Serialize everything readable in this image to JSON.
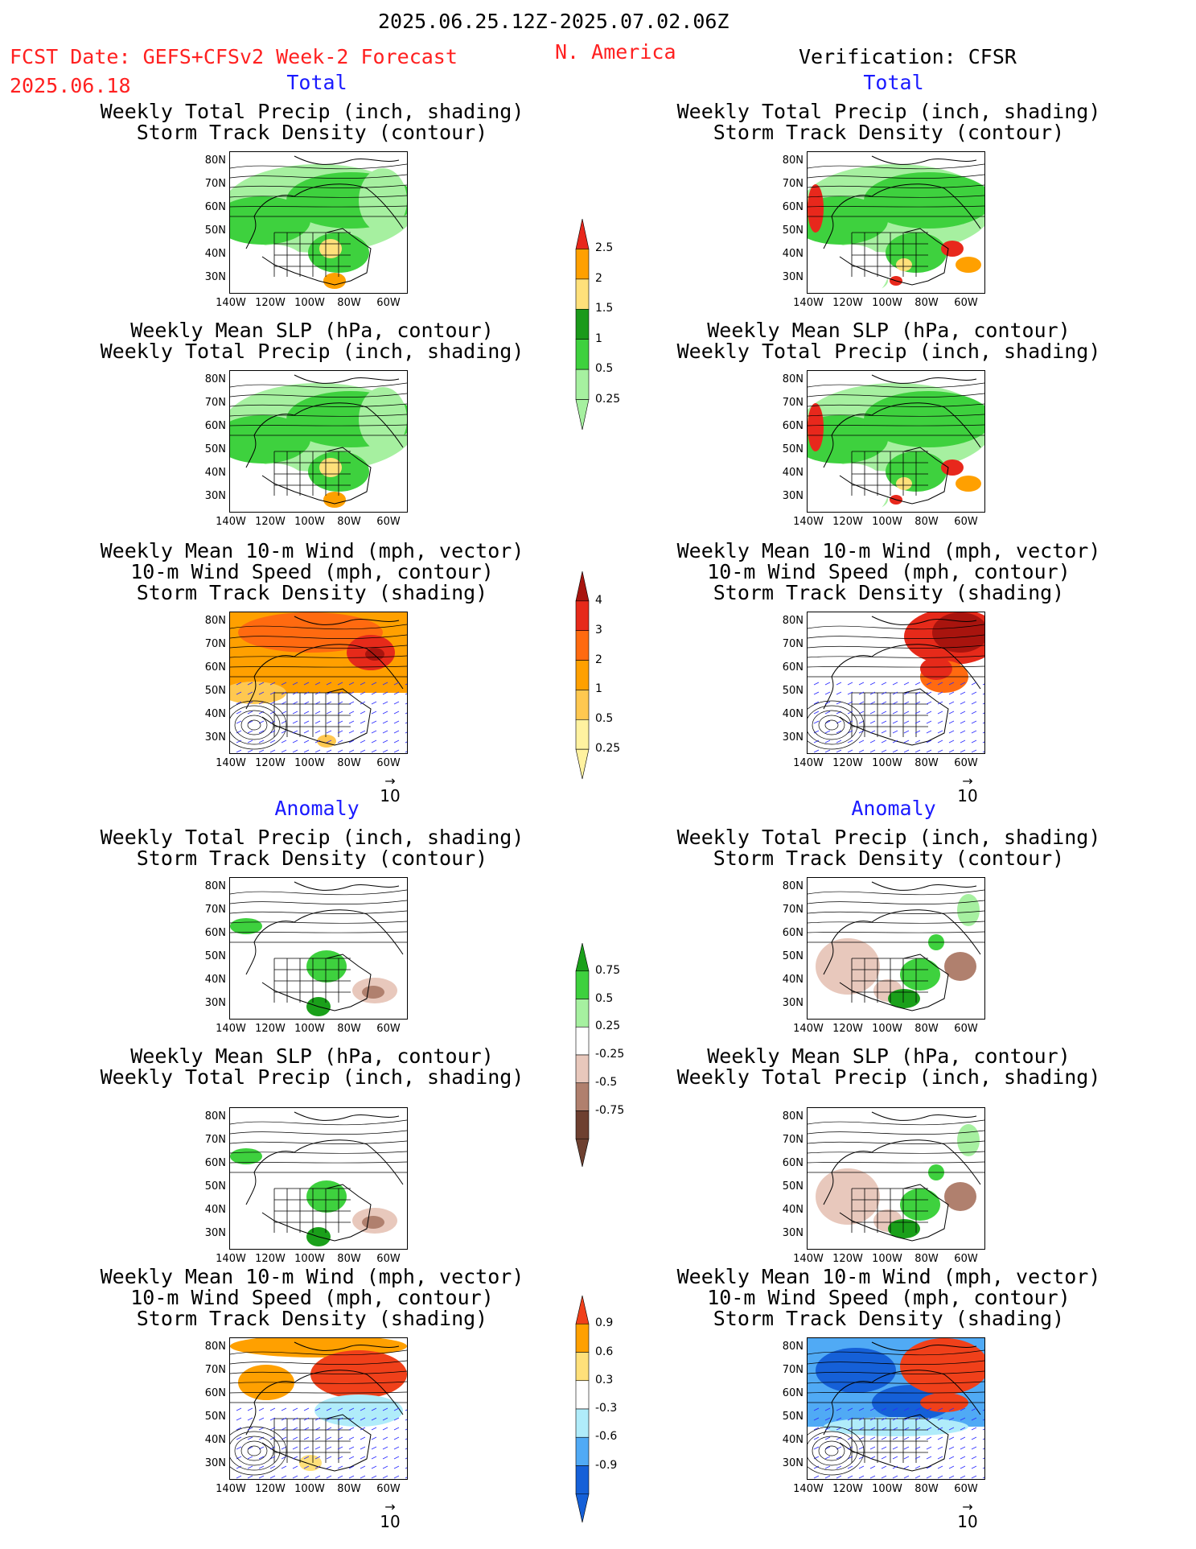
{
  "header": {
    "period": "2025.06.25.12Z-2025.07.02.06Z",
    "fcst_line1": "FCST Date: GEFS+CFSv2 Week-2 Forecast",
    "fcst_date": "2025.06.18",
    "region": "N. America",
    "verification": "Verification: CFSR"
  },
  "sections": {
    "total": "Total",
    "anomaly": "Anomaly"
  },
  "titles": {
    "precip_storm": [
      "Weekly Total Precip (inch, shading)",
      "Storm Track Density (contour)"
    ],
    "slp_precip": [
      "Weekly Mean SLP (hPa, contour)",
      "Weekly Total Precip (inch, shading)"
    ],
    "wind_storm": [
      "Weekly Mean 10-m Wind (mph, vector)",
      "10-m Wind Speed (mph, contour)",
      "Storm Track Density (shading)"
    ]
  },
  "axes": {
    "lat_ticks": [
      "80N",
      "70N",
      "60N",
      "50N",
      "40N",
      "30N"
    ],
    "lon_ticks": [
      "140W",
      "120W",
      "100W",
      "80W",
      "60W"
    ],
    "vector_ref": "10"
  },
  "colorbars": {
    "precip_total": {
      "labels": [
        "2.5",
        "2",
        "1.5",
        "1",
        "0.5",
        "0.25"
      ],
      "colors": [
        "#e8281c",
        "#ffa000",
        "#ffe07a",
        "#1a9a1a",
        "#3ed13e",
        "#a6f0a0"
      ]
    },
    "storm_total": {
      "labels": [
        "4",
        "3",
        "2",
        "1",
        "0.5",
        "0.25"
      ],
      "colors": [
        "#a8140e",
        "#e62a1a",
        "#ff6a10",
        "#ffa000",
        "#ffc850",
        "#fff2a0"
      ]
    },
    "precip_anom": {
      "labels": [
        "0.75",
        "0.5",
        "0.25",
        "-0.25",
        "-0.5",
        "-0.75"
      ],
      "colors": [
        "#1aa01a",
        "#3ed13e",
        "#a6f0a0",
        "#ffffff",
        "#e8c8bc",
        "#b0806e",
        "#6e4030"
      ]
    },
    "storm_anom": {
      "labels": [
        "0.9",
        "0.6",
        "0.3",
        "-0.3",
        "-0.6",
        "-0.9"
      ],
      "colors": [
        "#f0401a",
        "#ffa000",
        "#ffe07a",
        "#ffffff",
        "#b0ecfa",
        "#50aaf5",
        "#1560d8"
      ]
    }
  }
}
